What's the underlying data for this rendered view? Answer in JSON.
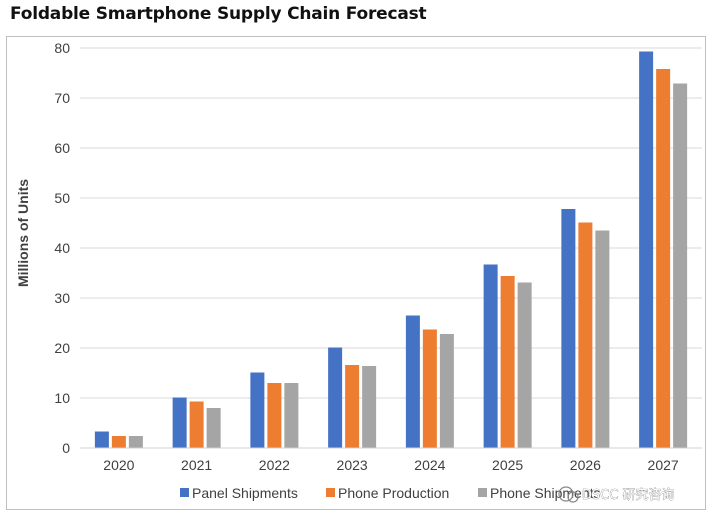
{
  "chart_data": {
    "type": "bar",
    "title": "Foldable Smartphone Supply Chain Forecast",
    "ylabel": "Millions of Units",
    "xlabel": "",
    "ylim": [
      0,
      80
    ],
    "yticks": [
      0,
      10,
      20,
      30,
      40,
      50,
      60,
      70,
      80
    ],
    "grid": true,
    "legend_position": "bottom",
    "categories": [
      "2020",
      "2021",
      "2022",
      "2023",
      "2024",
      "2025",
      "2026",
      "2027"
    ],
    "series": [
      {
        "name": "Panel Shipments",
        "color": "#4472c4",
        "values": [
          3.3,
          10.1,
          15.1,
          20.1,
          26.5,
          36.7,
          47.8,
          79.3
        ]
      },
      {
        "name": "Phone Production",
        "color": "#ed7d31",
        "values": [
          2.4,
          9.3,
          13.0,
          16.6,
          23.7,
          34.4,
          45.1,
          75.8
        ]
      },
      {
        "name": "Phone Shipments",
        "color": "#a5a5a5",
        "values": [
          2.4,
          8.0,
          13.0,
          16.4,
          22.8,
          33.1,
          43.5,
          72.9
        ]
      }
    ]
  },
  "watermark": "DSCC 研究咨询"
}
